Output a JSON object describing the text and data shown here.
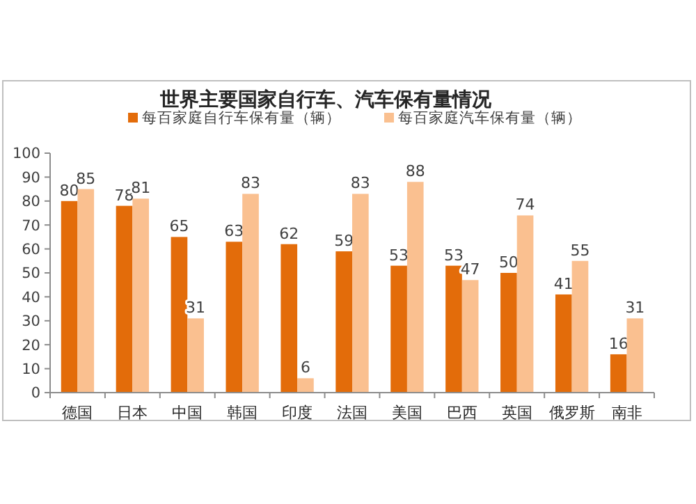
{
  "chart_data": {
    "type": "bar",
    "title": "世界主要国家自行车、汽车保有量情况",
    "categories": [
      "德国",
      "日本",
      "中国",
      "韩国",
      "印度",
      "法国",
      "美国",
      "巴西",
      "英国",
      "俄罗斯",
      "南非"
    ],
    "series": [
      {
        "name": "每百家庭自行车保有量（辆）",
        "color": "#e36c0a",
        "values": [
          80,
          78,
          65,
          63,
          62,
          59,
          53,
          53,
          50,
          41,
          16
        ]
      },
      {
        "name": "每百家庭汽车保有量（辆）",
        "color": "#fac090",
        "values": [
          85,
          81,
          31,
          83,
          6,
          83,
          88,
          47,
          74,
          55,
          31
        ]
      }
    ],
    "ylim": [
      0,
      100
    ],
    "yticks": [
      0,
      10,
      20,
      30,
      40,
      50,
      60,
      70,
      80,
      90,
      100
    ],
    "grid": false,
    "legend": "top",
    "data_labels": true
  }
}
